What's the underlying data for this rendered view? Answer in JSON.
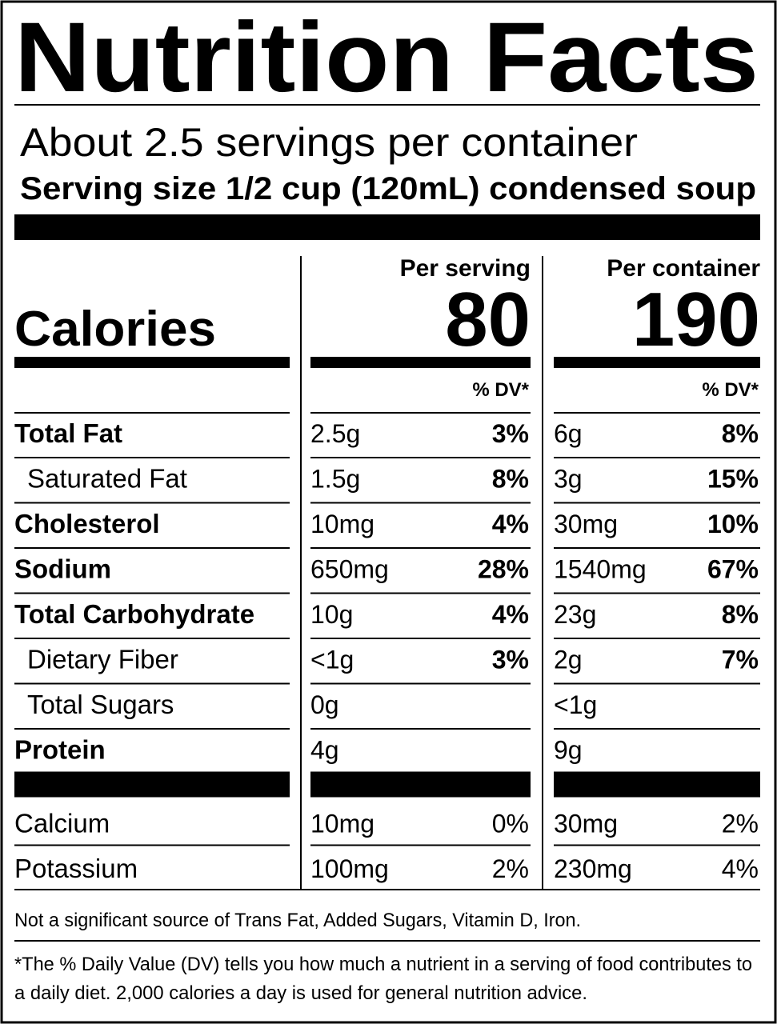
{
  "title": "Nutrition Facts",
  "servings": "About 2.5 servings per container",
  "serving_size": "Serving size 1/2 cup (120mL) condensed soup",
  "calories_label": "Calories",
  "columns": [
    {
      "header": "Per serving",
      "calories": "80",
      "dv_header": "% DV*"
    },
    {
      "header": "Per container",
      "calories": "190",
      "dv_header": "% DV*"
    }
  ],
  "nutrients": [
    {
      "name": "Total Fat",
      "bold": true,
      "indent": false,
      "values": [
        [
          "2.5g",
          "3%"
        ],
        [
          "6g",
          "8%"
        ]
      ]
    },
    {
      "name": "Saturated Fat",
      "bold": false,
      "indent": true,
      "values": [
        [
          "1.5g",
          "8%"
        ],
        [
          "3g",
          "15%"
        ]
      ]
    },
    {
      "name": "Cholesterol",
      "bold": true,
      "indent": false,
      "values": [
        [
          "10mg",
          "4%"
        ],
        [
          "30mg",
          "10%"
        ]
      ]
    },
    {
      "name": "Sodium",
      "bold": true,
      "indent": false,
      "values": [
        [
          "650mg",
          "28%"
        ],
        [
          "1540mg",
          "67%"
        ]
      ]
    },
    {
      "name": "Total Carbohydrate",
      "bold": true,
      "indent": false,
      "values": [
        [
          "10g",
          "4%"
        ],
        [
          "23g",
          "8%"
        ]
      ]
    },
    {
      "name": "Dietary Fiber",
      "bold": false,
      "indent": true,
      "values": [
        [
          "<1g",
          "3%"
        ],
        [
          "2g",
          "7%"
        ]
      ]
    },
    {
      "name": "Total Sugars",
      "bold": false,
      "indent": true,
      "values": [
        [
          "0g",
          null
        ],
        [
          "<1g",
          null
        ]
      ]
    },
    {
      "name": "Protein",
      "bold": true,
      "indent": false,
      "values": [
        [
          "4g",
          null
        ],
        [
          "9g",
          null
        ]
      ]
    }
  ],
  "minerals": [
    {
      "name": "Calcium",
      "values": [
        [
          "10mg",
          "0%"
        ],
        [
          "30mg",
          "2%"
        ]
      ]
    },
    {
      "name": "Potassium",
      "values": [
        [
          "100mg",
          "2%"
        ],
        [
          "230mg",
          "4%"
        ]
      ]
    }
  ],
  "footnote_1": "Not a significant source of Trans Fat, Added Sugars, Vitamin D, Iron.",
  "footnote_2": [
    "*The % Daily Value (DV) tells you how much a nutrient in a serving of food contributes to",
    "a daily diet. 2,000 calories a day is used for general nutrition advice."
  ]
}
